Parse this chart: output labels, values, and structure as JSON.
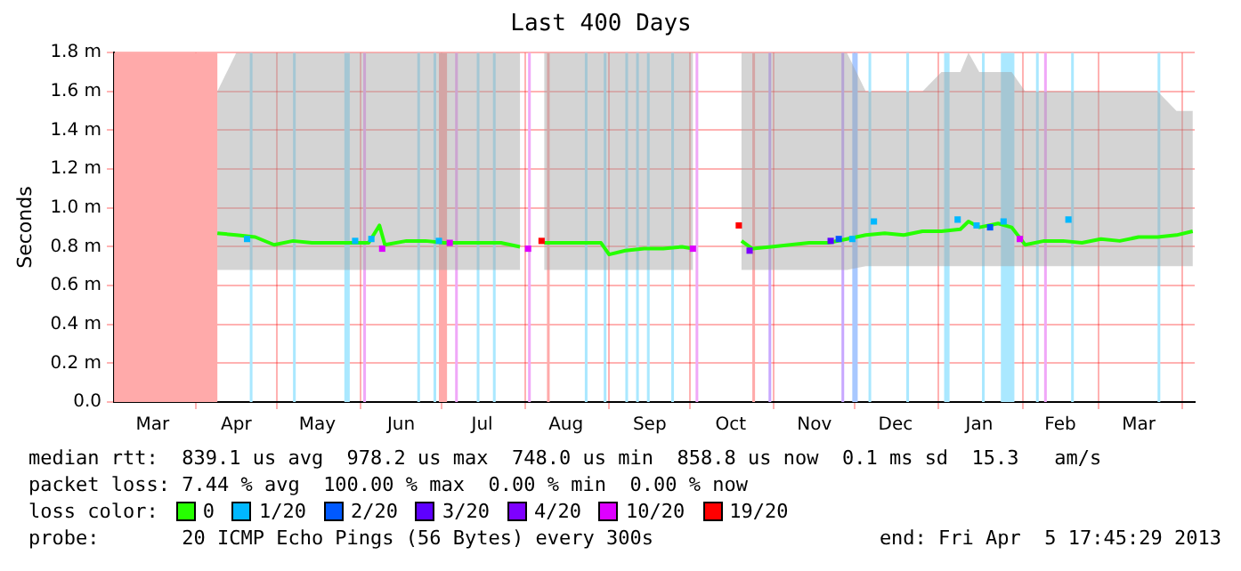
{
  "chart_data": {
    "type": "line",
    "title": "Last 400 Days",
    "ylabel": "Seconds",
    "xlim": [
      "2012-03-01T17:45",
      "2013-04-05T17:45"
    ],
    "xticks": [
      {
        "value": "2012-03-16",
        "label": "Mar"
      },
      {
        "value": "2012-04-01",
        "label": null
      },
      {
        "value": "2012-04-16",
        "label": "Apr"
      },
      {
        "value": "2012-05-01",
        "label": null
      },
      {
        "value": "2012-05-16",
        "label": "May"
      },
      {
        "value": "2012-06-01",
        "label": null
      },
      {
        "value": "2012-06-16",
        "label": "Jun"
      },
      {
        "value": "2012-07-01",
        "label": null
      },
      {
        "value": "2012-07-16",
        "label": "Jul"
      },
      {
        "value": "2012-08-01",
        "label": null
      },
      {
        "value": "2012-08-16",
        "label": "Aug"
      },
      {
        "value": "2012-09-01",
        "label": null
      },
      {
        "value": "2012-09-16",
        "label": "Sep"
      },
      {
        "value": "2012-10-01",
        "label": null
      },
      {
        "value": "2012-10-16",
        "label": "Oct"
      },
      {
        "value": "2012-11-01",
        "label": null
      },
      {
        "value": "2012-11-16",
        "label": "Nov"
      },
      {
        "value": "2012-12-01",
        "label": null
      },
      {
        "value": "2012-12-16",
        "label": "Dec"
      },
      {
        "value": "2013-01-01",
        "label": null
      },
      {
        "value": "2013-01-16",
        "label": "Jan"
      },
      {
        "value": "2013-02-01",
        "label": null
      },
      {
        "value": "2013-02-15",
        "label": "Feb"
      },
      {
        "value": "2013-03-01",
        "label": null
      },
      {
        "value": "2013-03-16",
        "label": "Mar"
      },
      {
        "value": "2013-04-01",
        "label": null
      }
    ],
    "ylim": [
      0,
      1.8
    ],
    "yticks": [
      {
        "value": 0,
        "label": "0.0"
      },
      {
        "value": 0.2,
        "label": "0.2 m"
      },
      {
        "value": 0.4,
        "label": "0.4 m"
      },
      {
        "value": 0.6,
        "label": "0.6 m"
      },
      {
        "value": 0.8,
        "label": "0.8 m"
      },
      {
        "value": 1.0,
        "label": "1.0 m"
      },
      {
        "value": 1.2,
        "label": "1.2 m"
      },
      {
        "value": 1.4,
        "label": "1.4 m"
      },
      {
        "value": 1.6,
        "label": "1.6 m"
      },
      {
        "value": 1.8,
        "label": "1.8 m"
      }
    ],
    "grid": true,
    "legend": "bottom",
    "legend_title": "loss color:",
    "line_style": "solid",
    "series": [
      {
        "name": "0",
        "marker": "none",
        "color": "#26ff00",
        "x": [
          "2012-04-09",
          "2012-04-16",
          "2012-04-23",
          "2012-04-30",
          "2012-05-07",
          "2012-05-14",
          "2012-05-21",
          "2012-05-28",
          "2012-06-04",
          "2012-06-08",
          "2012-06-10",
          "2012-06-18",
          "2012-06-25",
          "2012-07-02",
          "2012-07-09",
          "2012-07-16",
          "2012-07-23",
          "2012-07-30",
          "2012-08-04",
          "2012-08-08",
          "2012-08-15",
          "2012-08-22",
          "2012-08-29",
          "2012-09-01",
          "2012-09-07",
          "2012-09-14",
          "2012-09-21",
          "2012-09-28",
          "2012-10-02",
          "2012-10-10",
          "2012-10-20",
          "2012-10-24",
          "2012-10-31",
          "2012-11-07",
          "2012-11-14",
          "2012-11-21",
          "2012-11-28",
          "2012-12-05",
          "2012-12-12",
          "2012-12-19",
          "2012-12-26",
          "2013-01-02",
          "2013-01-09",
          "2013-01-12",
          "2013-01-16",
          "2013-01-23",
          "2013-01-28",
          "2013-02-02",
          "2013-02-09",
          "2013-02-16",
          "2013-02-23",
          "2013-03-02",
          "2013-03-09",
          "2013-03-16",
          "2013-03-23",
          "2013-03-30",
          "2013-04-05"
        ],
        "values": [
          0.87,
          0.86,
          0.85,
          0.81,
          0.83,
          0.82,
          0.82,
          0.82,
          0.82,
          0.91,
          0.81,
          0.83,
          0.83,
          0.82,
          0.82,
          0.82,
          0.82,
          0.8,
          null,
          0.82,
          0.82,
          0.82,
          0.82,
          0.76,
          0.78,
          0.79,
          0.79,
          0.8,
          0.79,
          null,
          0.83,
          0.79,
          0.8,
          0.81,
          0.82,
          0.82,
          0.84,
          0.86,
          0.87,
          0.86,
          0.88,
          0.88,
          0.89,
          0.93,
          0.9,
          0.92,
          0.9,
          0.81,
          0.83,
          0.83,
          0.82,
          0.84,
          0.83,
          0.85,
          0.85,
          0.86,
          0.88
        ],
        "lower": [
          0.68,
          0.68,
          0.68,
          0.68,
          0.68,
          0.68,
          0.68,
          0.68,
          0.68,
          0.68,
          0.68,
          0.68,
          0.68,
          0.68,
          0.68,
          0.68,
          0.68,
          0.68,
          null,
          0.68,
          0.68,
          0.68,
          0.68,
          0.68,
          0.68,
          0.68,
          0.68,
          0.68,
          0.68,
          null,
          0.68,
          0.68,
          0.68,
          0.68,
          0.68,
          0.68,
          0.68,
          0.7,
          0.7,
          0.7,
          0.7,
          0.7,
          0.7,
          0.7,
          0.7,
          0.7,
          0.7,
          0.7,
          0.7,
          0.7,
          0.7,
          0.7,
          0.7,
          0.7,
          0.7,
          0.7,
          0.7
        ],
        "upper": [
          1.6,
          1.8,
          1.8,
          1.8,
          1.8,
          1.8,
          1.8,
          1.8,
          1.8,
          1.8,
          1.8,
          1.8,
          1.8,
          1.8,
          1.8,
          1.8,
          1.8,
          1.8,
          null,
          1.8,
          1.8,
          1.8,
          1.8,
          1.8,
          1.8,
          1.8,
          1.8,
          1.8,
          1.8,
          null,
          1.8,
          1.8,
          1.8,
          1.8,
          1.8,
          1.8,
          1.8,
          1.6,
          1.6,
          1.6,
          1.6,
          1.7,
          1.7,
          1.8,
          1.7,
          1.7,
          1.7,
          1.6,
          1.6,
          1.6,
          1.6,
          1.6,
          1.6,
          1.6,
          1.6,
          1.5,
          1.5
        ]
      },
      {
        "name": "1/20",
        "type": "scatter",
        "marker": "square",
        "color": "#00b8ff",
        "x": [
          "2012-04-20",
          "2012-05-30",
          "2012-06-05",
          "2012-06-30",
          "2012-11-30",
          "2012-12-08",
          "2013-01-08",
          "2013-01-15",
          "2013-01-25",
          "2013-02-18"
        ],
        "values": [
          0.84,
          0.83,
          0.84,
          0.83,
          0.84,
          0.93,
          0.94,
          0.91,
          0.93,
          0.94
        ]
      },
      {
        "name": "2/20",
        "type": "scatter",
        "marker": "square",
        "color": "#0059ff",
        "x": [
          "2012-11-25",
          "2013-01-20"
        ],
        "values": [
          0.84,
          0.9
        ]
      },
      {
        "name": "3/20",
        "type": "scatter",
        "marker": "square",
        "color": "#5e00ff",
        "x": [
          "2012-11-22"
        ],
        "values": [
          0.83
        ]
      },
      {
        "name": "4/20",
        "type": "scatter",
        "marker": "square",
        "color": "#7e00ff",
        "x": [
          "2012-10-23"
        ],
        "values": [
          0.78
        ]
      },
      {
        "name": "10/20",
        "type": "scatter",
        "marker": "square",
        "color": "#dd00ff",
        "x": [
          "2012-06-09",
          "2012-07-04",
          "2012-08-02",
          "2012-10-02",
          "2013-01-31"
        ],
        "values": [
          0.79,
          0.82,
          0.79,
          0.79,
          0.84
        ]
      },
      {
        "name": "19/20",
        "type": "scatter",
        "marker": "square",
        "color": "#ff0000",
        "x": [
          "2012-08-07",
          "2012-10-19"
        ],
        "values": [
          0.83,
          0.91
        ]
      }
    ],
    "bands": [
      {
        "axis": "x",
        "from": "2012-03-01T17:45",
        "to": "2012-04-09",
        "color": "#ffaaaa"
      },
      {
        "axis": "x",
        "from": "2012-04-21",
        "to": "2012-04-22",
        "color": "#aae8ff"
      },
      {
        "axis": "x",
        "from": "2012-05-07",
        "to": "2012-05-08",
        "color": "#aae8ff"
      },
      {
        "axis": "x",
        "from": "2012-05-26",
        "to": "2012-05-28",
        "color": "#aae8ff"
      },
      {
        "axis": "x",
        "from": "2012-06-02",
        "to": "2012-06-03",
        "color": "#f0a8f8"
      },
      {
        "axis": "x",
        "from": "2012-06-22",
        "to": "2012-06-23",
        "color": "#aae8ff"
      },
      {
        "axis": "x",
        "from": "2012-06-28",
        "to": "2012-06-29",
        "color": "#aae8ff"
      },
      {
        "axis": "x",
        "from": "2012-06-30",
        "to": "2012-07-03",
        "color": "#ffaaaa"
      },
      {
        "axis": "x",
        "from": "2012-07-06",
        "to": "2012-07-07",
        "color": "#f0a8f8"
      },
      {
        "axis": "x",
        "from": "2012-07-14",
        "to": "2012-07-15",
        "color": "#aae8ff"
      },
      {
        "axis": "x",
        "from": "2012-07-20",
        "to": "2012-07-21",
        "color": "#aae8ff"
      },
      {
        "axis": "x",
        "from": "2012-08-02",
        "to": "2012-08-03",
        "color": "#f0a8f8"
      },
      {
        "axis": "x",
        "from": "2012-08-09",
        "to": "2012-08-10",
        "color": "#ffaaaa"
      },
      {
        "axis": "x",
        "from": "2012-08-23",
        "to": "2012-08-24",
        "color": "#aae8ff"
      },
      {
        "axis": "x",
        "from": "2012-08-30",
        "to": "2012-08-31",
        "color": "#aae8ff"
      },
      {
        "axis": "x",
        "from": "2012-09-07",
        "to": "2012-09-08",
        "color": "#aae8ff"
      },
      {
        "axis": "x",
        "from": "2012-09-11",
        "to": "2012-09-12",
        "color": "#aae8ff"
      },
      {
        "axis": "x",
        "from": "2012-09-15",
        "to": "2012-09-16",
        "color": "#aae8ff"
      },
      {
        "axis": "x",
        "from": "2012-09-24",
        "to": "2012-09-25",
        "color": "#aae8ff"
      },
      {
        "axis": "x",
        "from": "2012-10-03",
        "to": "2012-10-04",
        "color": "#f0a8f8"
      },
      {
        "axis": "x",
        "from": "2012-10-24",
        "to": "2012-10-25",
        "color": "#ffaaaa"
      },
      {
        "axis": "x",
        "from": "2012-10-30",
        "to": "2012-10-31",
        "color": "#c8a8ff"
      },
      {
        "axis": "x",
        "from": "2012-11-26",
        "to": "2012-11-27",
        "color": "#c8a8ff"
      },
      {
        "axis": "x",
        "from": "2012-11-30",
        "to": "2012-12-02",
        "color": "#a8c8ff"
      },
      {
        "axis": "x",
        "from": "2012-12-06",
        "to": "2012-12-07",
        "color": "#aae8ff"
      },
      {
        "axis": "x",
        "from": "2012-12-20",
        "to": "2012-12-21",
        "color": "#aae8ff"
      },
      {
        "axis": "x",
        "from": "2013-01-03",
        "to": "2013-01-05",
        "color": "#aae8ff"
      },
      {
        "axis": "x",
        "from": "2013-01-17",
        "to": "2013-01-18",
        "color": "#aae8ff"
      },
      {
        "axis": "x",
        "from": "2013-01-24",
        "to": "2013-01-29",
        "color": "#aae8ff"
      },
      {
        "axis": "x",
        "from": "2013-02-06",
        "to": "2013-02-07",
        "color": "#aae8ff"
      },
      {
        "axis": "x",
        "from": "2013-02-09",
        "to": "2013-02-10",
        "color": "#f0a8f8"
      },
      {
        "axis": "x",
        "from": "2013-02-19",
        "to": "2013-02-20",
        "color": "#aae8ff"
      },
      {
        "axis": "x",
        "from": "2013-03-23",
        "to": "2013-03-24",
        "color": "#aae8ff"
      }
    ],
    "annotations": [
      "median rtt:  839.1 us avg  978.2 us max  748.0 us min  858.8 us now  0.1 ms sd  15.3   am/s",
      "packet loss: 7.44 % avg  100.00 % max  0.00 % min  0.00 % now",
      "probe:       20 ICMP Echo Pings (56 Bytes) every 300s",
      "end: Fri Apr  5 17:45:29 2013"
    ]
  }
}
